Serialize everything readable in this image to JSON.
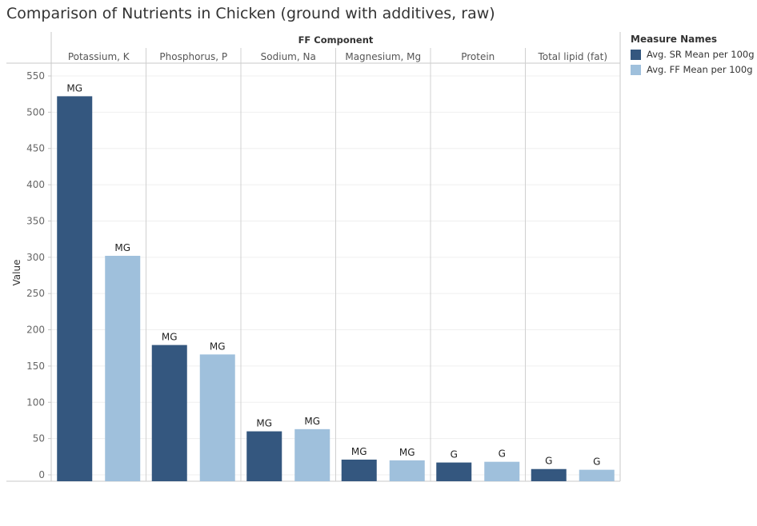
{
  "title": "Comparison of Nutrients in Chicken (ground with additives, raw)",
  "legend": {
    "title": "Measure Names",
    "items": [
      {
        "label": "Avg. SR Mean per 100g",
        "color": "#34577f"
      },
      {
        "label": "Avg. FF Mean per 100g",
        "color": "#9fc0dc"
      }
    ]
  },
  "chart_data": {
    "type": "bar",
    "column_header": "FF Component",
    "ylabel": "Value",
    "ylim": [
      0,
      550
    ],
    "yticks": [
      0,
      50,
      100,
      150,
      200,
      250,
      300,
      350,
      400,
      450,
      500,
      550
    ],
    "grid": true,
    "legend_position": "right",
    "categories": [
      "Potassium, K",
      "Phosphorus, P",
      "Sodium, Na",
      "Magnesium, Mg",
      "Protein",
      "Total lipid (fat)"
    ],
    "series": [
      {
        "name": "Avg. SR Mean per 100g",
        "color": "#34577f",
        "values": [
          522,
          179,
          60,
          21,
          17,
          8
        ],
        "labels": [
          "MG",
          "MG",
          "MG",
          "MG",
          "G",
          "G"
        ]
      },
      {
        "name": "Avg. FF Mean per 100g",
        "color": "#9fc0dc",
        "values": [
          302,
          166,
          63,
          20,
          18,
          7
        ],
        "labels": [
          "MG",
          "MG",
          "MG",
          "MG",
          "G",
          "G"
        ]
      }
    ]
  }
}
